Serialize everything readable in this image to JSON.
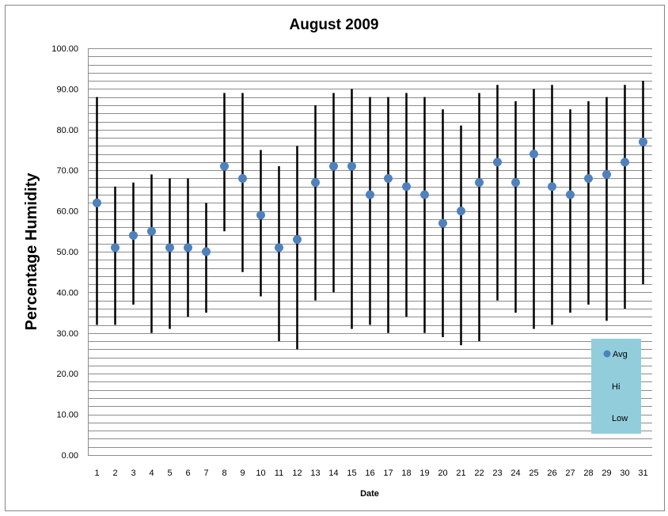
{
  "chart_data": {
    "type": "scatter",
    "title": "August 2009",
    "xlabel": "Date",
    "ylabel": "Percentage Humidity",
    "ylim": [
      0,
      100
    ],
    "y_major_step": 10,
    "y_minor_step": 2,
    "y_tick_labels": [
      "0.00",
      "10.00",
      "20.00",
      "30.00",
      "40.00",
      "50.00",
      "60.00",
      "70.00",
      "80.00",
      "90.00",
      "100.00"
    ],
    "grid": true,
    "x": [
      1,
      2,
      3,
      4,
      5,
      6,
      7,
      8,
      9,
      10,
      11,
      12,
      13,
      14,
      15,
      16,
      17,
      18,
      19,
      20,
      21,
      22,
      23,
      24,
      25,
      26,
      27,
      28,
      29,
      30,
      31
    ],
    "series": [
      {
        "name": "Avg",
        "marker": "circle",
        "color": "#4F81BD",
        "values": [
          62,
          51,
          54,
          55,
          51,
          51,
          50,
          71,
          68,
          59,
          51,
          53,
          67,
          71,
          71,
          64,
          68,
          66,
          64,
          57,
          60,
          67,
          72,
          67,
          74,
          66,
          64,
          68,
          69,
          72,
          77
        ]
      },
      {
        "name": "Hi",
        "marker": "none",
        "color": "#000000",
        "values": [
          88,
          66,
          67,
          69,
          68,
          68,
          62,
          89,
          89,
          75,
          71,
          76,
          86,
          89,
          90,
          88,
          88,
          89,
          88,
          85,
          81,
          89,
          91,
          87,
          90,
          91,
          85,
          87,
          88,
          91,
          92
        ]
      },
      {
        "name": "Low",
        "marker": "none",
        "color": "#000000",
        "values": [
          32,
          32,
          37,
          30,
          31,
          34,
          35,
          55,
          45,
          39,
          28,
          26,
          38,
          40,
          31,
          32,
          30,
          34,
          30,
          29,
          27,
          28,
          38,
          35,
          31,
          32,
          35,
          37,
          33,
          36,
          42
        ]
      }
    ],
    "hi_low_lines": true,
    "legend": {
      "position": "bottom-right",
      "background": "#92CDDC",
      "entries": [
        "Avg",
        "Hi",
        "Low"
      ]
    }
  }
}
